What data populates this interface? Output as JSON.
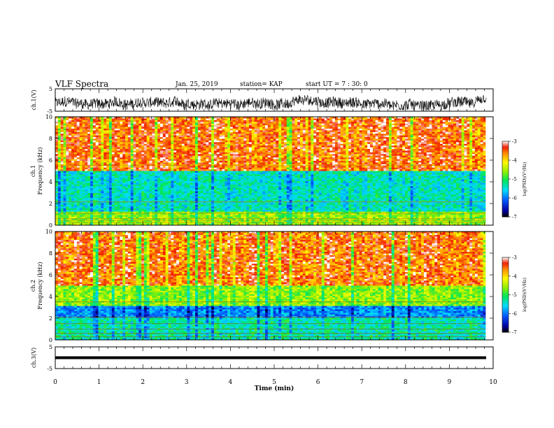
{
  "header": {
    "title": "VLF Spectra",
    "date": "Jan. 25, 2019",
    "station": "station= KAP",
    "start": "start  UT =   7 : 30: 0"
  },
  "chart_data": [
    {
      "type": "line",
      "title": "",
      "ylabel": "ch.1(V)",
      "ylim": [
        -5,
        5
      ],
      "yticks": [
        "5",
        "-5"
      ],
      "xlim": [
        0,
        10
      ],
      "description_values": {
        "mean": -1.5,
        "amplitude": 2.0
      },
      "color": "#000000"
    },
    {
      "type": "heatmap",
      "ylabel_top": "ch.1",
      "ylabel": "Frequency (kHz)",
      "ylim": [
        0,
        10
      ],
      "yticks": [
        "0",
        "2",
        "4",
        "6",
        "8",
        "10"
      ],
      "xlim": [
        0,
        10
      ],
      "colorbar": {
        "label": "log(PSD)(V²/Hz)",
        "range": [
          -7,
          -3
        ],
        "ticks": [
          "-3",
          "-4",
          "-5",
          "-6",
          "-7"
        ]
      },
      "bands": [
        {
          "from": 0.0,
          "to": 1.2,
          "level": -4.6
        },
        {
          "from": 1.2,
          "to": 5.0,
          "level": -5.4
        },
        {
          "from": 5.0,
          "to": 10.0,
          "level": -3.6
        }
      ]
    },
    {
      "type": "heatmap",
      "ylabel_top": "ch.2",
      "ylabel": "Frequency (kHz)",
      "ylim": [
        0,
        10
      ],
      "yticks": [
        "0",
        "2",
        "4",
        "6",
        "8",
        "10"
      ],
      "xlim": [
        0,
        10
      ],
      "colorbar": {
        "label": "log(PSD)(V²/Hz)",
        "range": [
          -7,
          -3
        ],
        "ticks": [
          "-3",
          "-4",
          "-5",
          "-6",
          "-7"
        ]
      },
      "bands": [
        {
          "from": 0.0,
          "to": 2.0,
          "level": -5.3
        },
        {
          "from": 2.0,
          "to": 3.2,
          "level": -5.9
        },
        {
          "from": 3.2,
          "to": 5.0,
          "level": -4.6
        },
        {
          "from": 5.0,
          "to": 10.0,
          "level": -3.6
        }
      ]
    },
    {
      "type": "line",
      "ylabel": "ch.3(V)",
      "ylim": [
        -5,
        5
      ],
      "yticks": [
        "5",
        "-5"
      ],
      "xlim": [
        0,
        10
      ],
      "xlabel": "Time (min)",
      "xticks": [
        "0",
        "1",
        "2",
        "3",
        "4",
        "5",
        "6",
        "7",
        "8",
        "9",
        "10"
      ],
      "constant_value": 0,
      "color": "#000000"
    }
  ]
}
